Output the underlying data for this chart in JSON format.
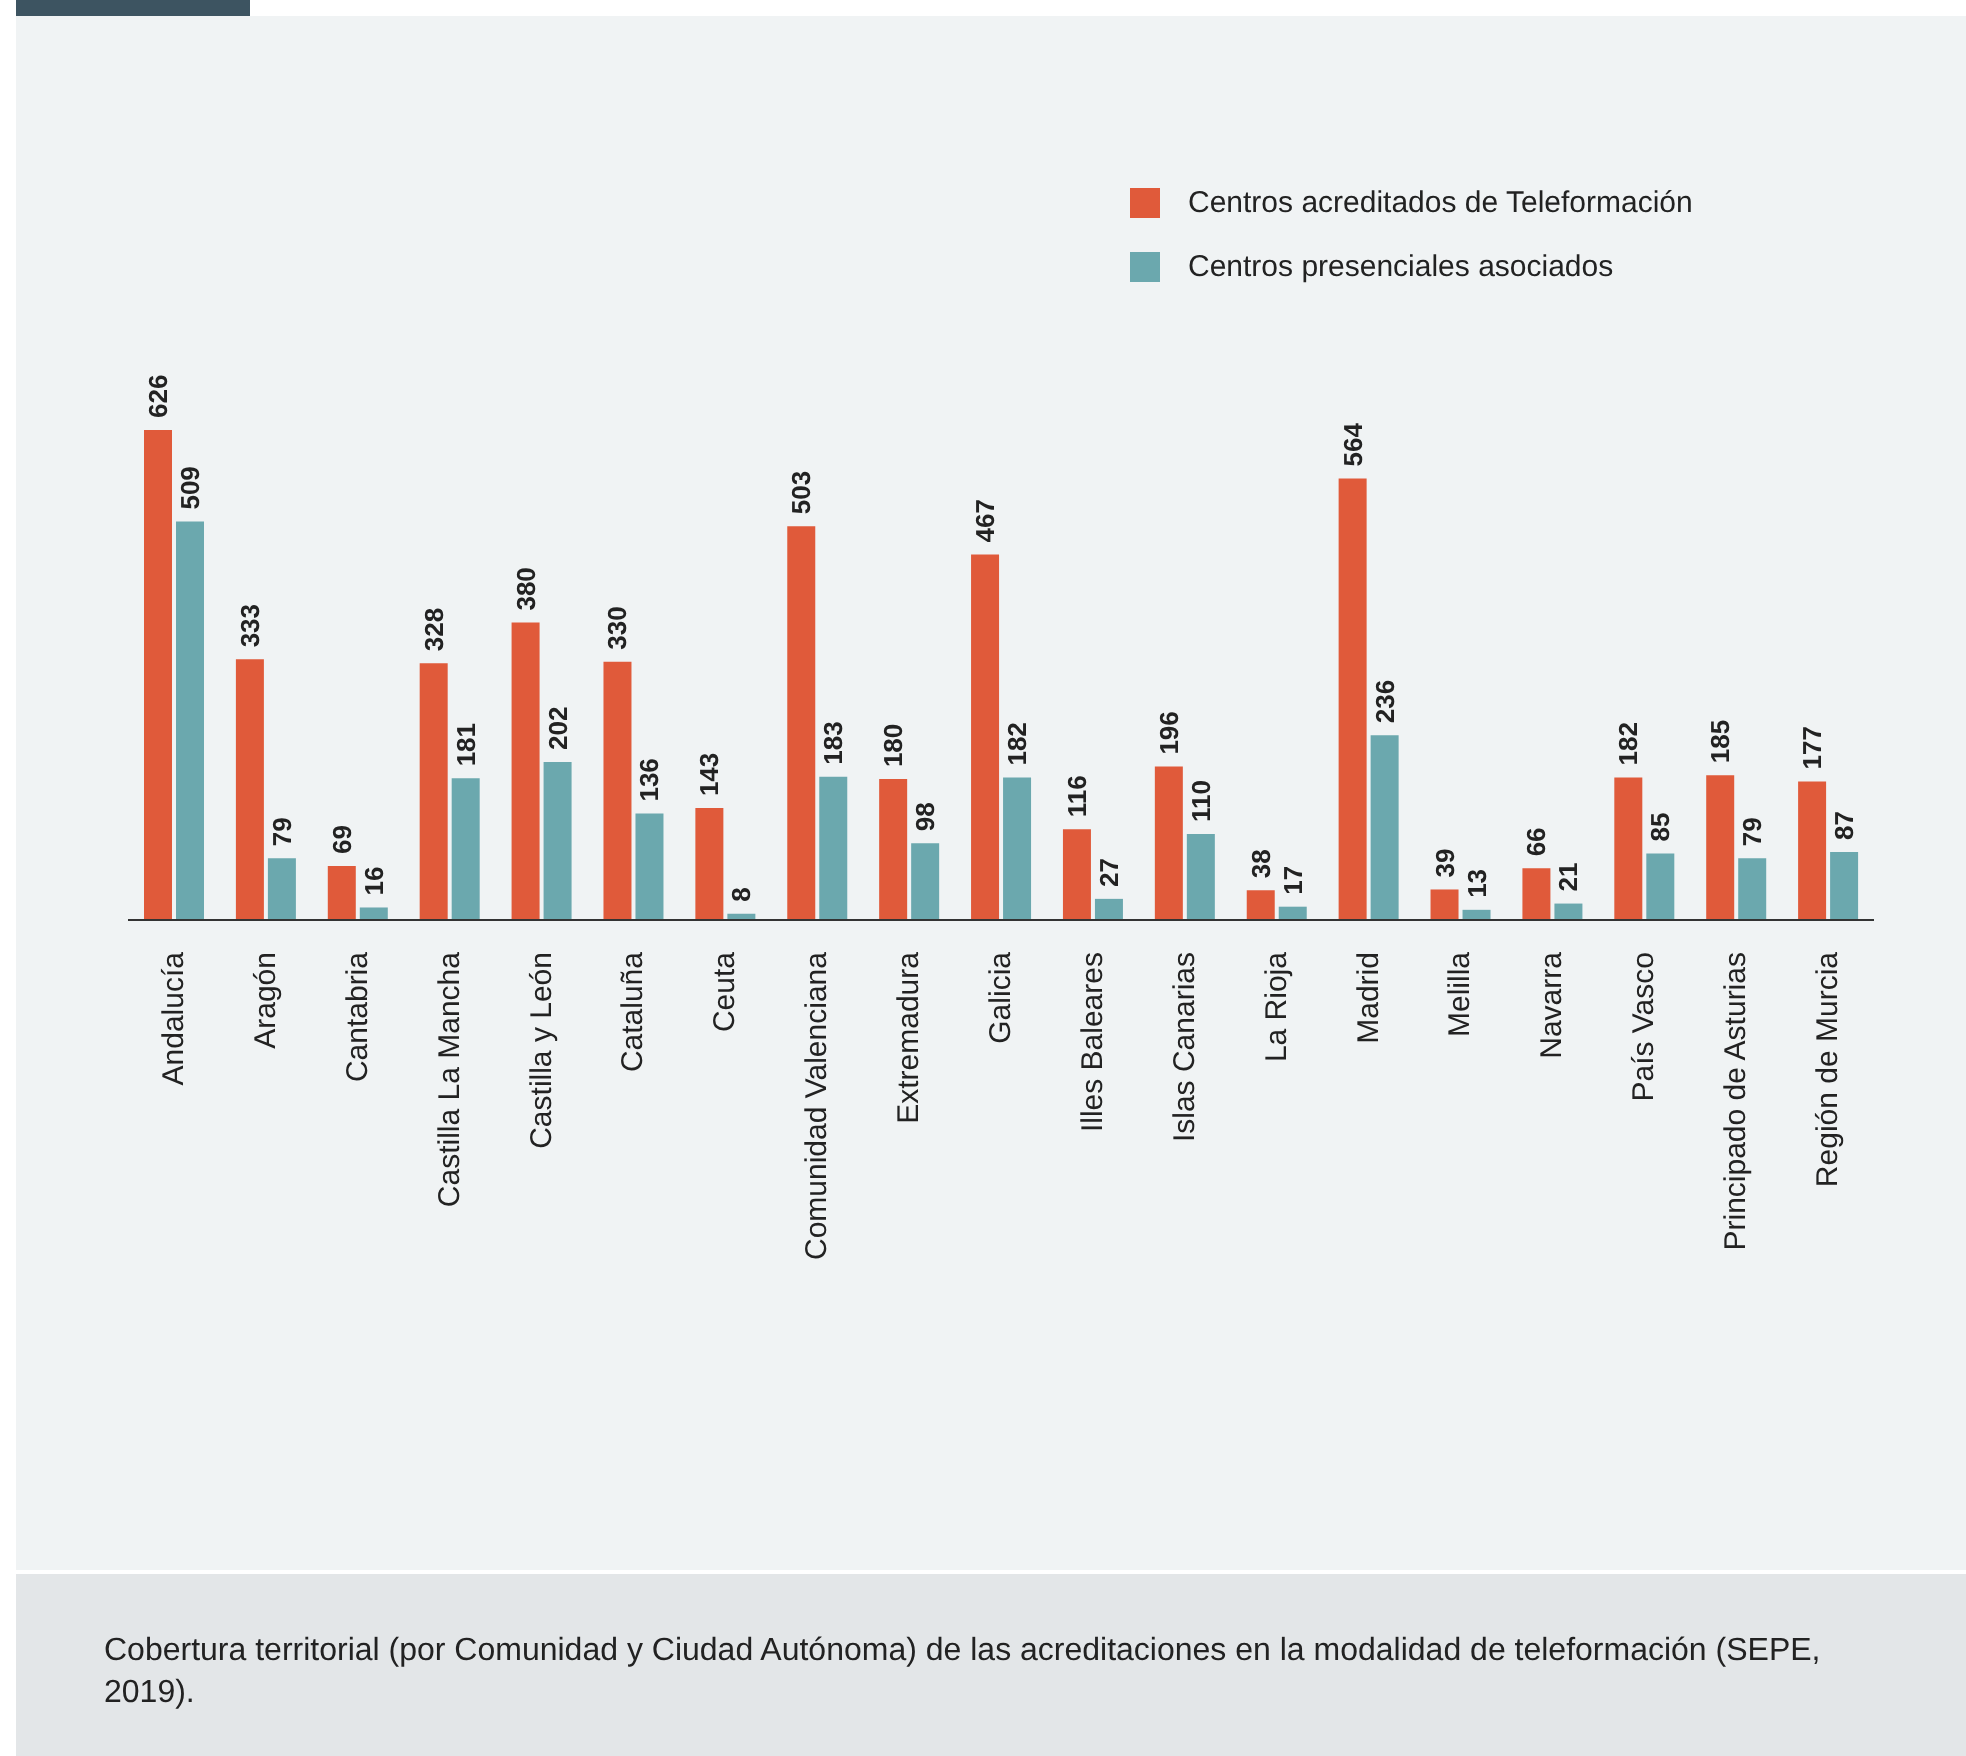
{
  "chart_data": {
    "type": "bar",
    "categories": [
      "Andalucía",
      "Aragón",
      "Cantabria",
      "Castilla La Mancha",
      "Castilla y León",
      "Cataluña",
      "Ceuta",
      "Comunidad Valenciana",
      "Extremadura",
      "Galicia",
      "Illes Baleares",
      "Islas Canarias",
      "La Rioja",
      "Madrid",
      "Melilla",
      "Navarra",
      "País Vasco",
      "Principado de Asturias",
      "Región de Murcia"
    ],
    "series": [
      {
        "name": "Centros acreditados de Teleformación",
        "color": "#e05a3a",
        "values": [
          626,
          333,
          69,
          328,
          380,
          330,
          143,
          503,
          180,
          467,
          116,
          196,
          38,
          564,
          39,
          66,
          182,
          185,
          177
        ]
      },
      {
        "name": "Centros presenciales asociados",
        "color": "#6ba8ae",
        "values": [
          509,
          79,
          16,
          181,
          202,
          136,
          8,
          183,
          98,
          182,
          27,
          110,
          17,
          236,
          13,
          21,
          85,
          79,
          87
        ]
      }
    ],
    "data_labels": true,
    "legend": "top right",
    "annotations": [
      "Cobertura territorial (por Comunidad y Ciudad Autónoma) de las acreditaciones en la modalidad de teleformación (SEPE, 2019)."
    ]
  }
}
